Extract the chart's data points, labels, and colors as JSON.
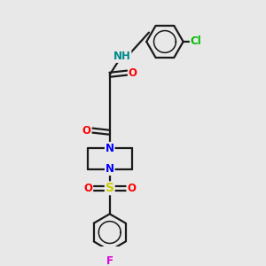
{
  "bg_color": "#e8e8e8",
  "bond_color": "#1a1a1a",
  "bond_lw": 1.6,
  "atom_colors": {
    "N": "#0000ff",
    "O": "#ff0000",
    "Cl": "#00bb00",
    "F": "#dd00dd",
    "S": "#cccc00",
    "H": "#008888"
  },
  "fs": 8.5,
  "ring_r": 0.75
}
